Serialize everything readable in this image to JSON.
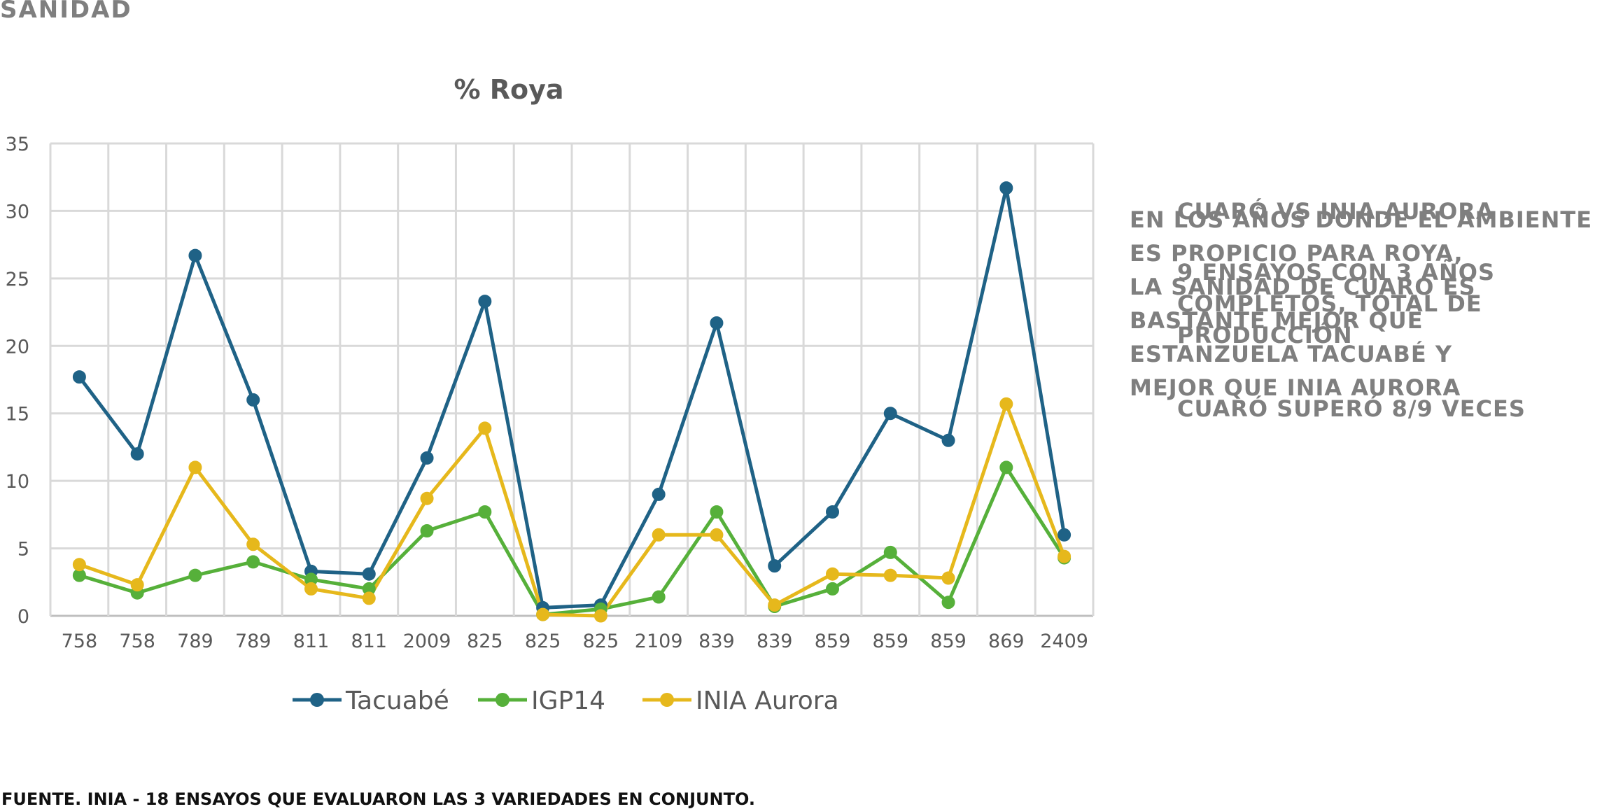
{
  "page": {
    "heading": "SANIDAD",
    "note_a": [
      "EN LOS AÑOS DONDE EL AMBIENTE",
      "ES PROPICIO PARA ROYA,",
      "LA SANIDAD DE CUARÓ ES",
      "BASTANTE MEJOR QUE",
      "ESTANZUELA TACUABÉ Y",
      "MEJOR QUE INIA AURORA"
    ],
    "note_b": {
      "title": "CUARÓ VS INIA AURORA",
      "lines": [
        "9 ENSAYOS CON 3 AÑOS",
        "COMPLETOS, TOTAL DE",
        "PRODUCCIÓN"
      ],
      "result": "CUARÓ SUPERÓ 8/9 VECES"
    },
    "source": "FUENTE. INIA - 18 ENSAYOS QUE EVALUARON LAS 3 VARIEDADES EN CONJUNTO."
  },
  "chart_data": {
    "type": "line",
    "title": "% Roya",
    "categories": [
      "758",
      "758",
      "789",
      "789",
      "811",
      "811",
      "2009",
      "825",
      "825",
      "825",
      "2109",
      "839",
      "839",
      "859",
      "859",
      "859",
      "869",
      "2409"
    ],
    "series": [
      {
        "name": "Tacuabé",
        "color": "#1f6286",
        "values": [
          17.7,
          12.0,
          26.7,
          16.0,
          3.3,
          3.1,
          11.7,
          23.3,
          0.6,
          0.8,
          9.0,
          21.7,
          3.7,
          7.7,
          15.0,
          13.0,
          31.7,
          6.0
        ]
      },
      {
        "name": "IGP14",
        "color": "#56b03a",
        "values": [
          3.0,
          1.7,
          3.0,
          4.0,
          2.7,
          2.0,
          6.3,
          7.7,
          0.1,
          0.5,
          1.4,
          7.7,
          0.7,
          2.0,
          4.7,
          1.0,
          11.0,
          4.3
        ]
      },
      {
        "name": "INIA Aurora",
        "color": "#e6b81c",
        "values": [
          3.8,
          2.3,
          11.0,
          5.3,
          2.0,
          1.3,
          8.7,
          13.9,
          0.1,
          0.0,
          6.0,
          6.0,
          0.8,
          3.1,
          3.0,
          2.8,
          15.7,
          4.4
        ]
      }
    ],
    "ylim": [
      0,
      35
    ],
    "yticks": [
      0,
      5,
      10,
      15,
      20,
      25,
      30,
      35
    ],
    "grid": true,
    "legend": "bottom"
  }
}
